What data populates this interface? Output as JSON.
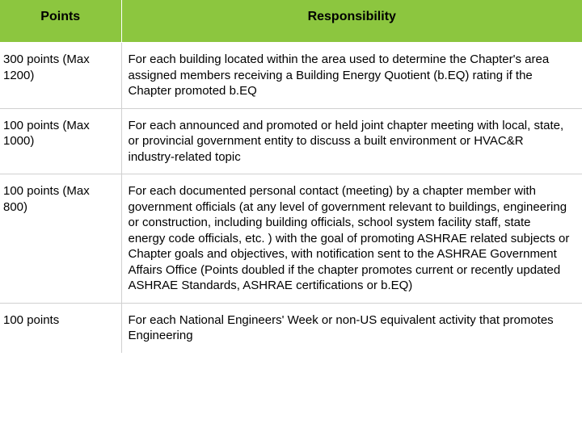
{
  "table": {
    "header_bg": "#8cc63f",
    "columns": [
      "Points",
      "Responsibility"
    ],
    "rows": [
      {
        "points": "300 points (Max 1200)",
        "responsibility": "For each building located within the area used to determine the Chapter's area assigned members receiving a Building Energy Quotient (b.EQ) rating if the Chapter promoted b.EQ"
      },
      {
        "points": "100 points (Max 1000)",
        "responsibility": "For each announced and promoted or held joint chapter meeting with local, state, or provincial government entity to discuss a built environment or HVAC&R industry-related topic"
      },
      {
        "points": "100 points (Max 800)",
        "responsibility": "For each documented personal contact (meeting) by a chapter member with government officials (at any level of government relevant to buildings, engineering or construction, including building officials, school system facility staff, state energy code officials, etc. ) with the goal of promoting ASHRAE related subjects or Chapter goals and objectives, with notification sent to the ASHRAE Government Affairs Office (Points doubled if the chapter promotes current or recently updated ASHRAE Standards, ASHRAE certifications or b.EQ)"
      },
      {
        "points": "100 points",
        "responsibility": "For each National Engineers' Week or non-US equivalent activity that promotes Engineering"
      }
    ]
  }
}
